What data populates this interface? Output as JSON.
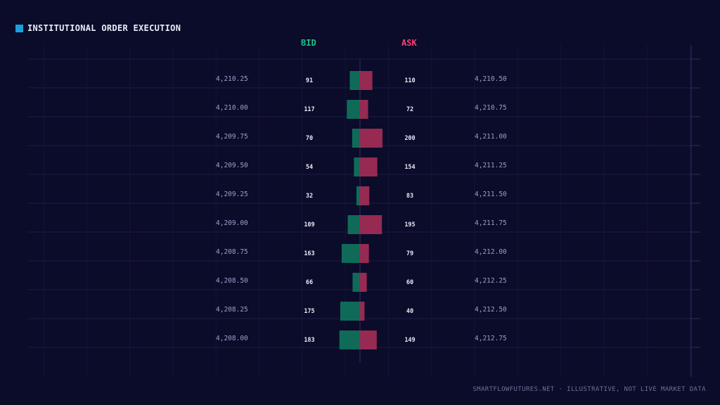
{
  "header": {
    "title": "INSTITUTIONAL ORDER EXECUTION",
    "accent_color": "#1aa0d8"
  },
  "columns": {
    "bid_label": "BID",
    "ask_label": "ASK",
    "bid_color": "#1fc28a",
    "ask_color": "#ff3f74"
  },
  "chart_data": {
    "type": "bar",
    "rows": [
      {
        "bid_price": "4,210.25",
        "bid_size": 91,
        "ask_size": 110,
        "ask_price": "4,210.50"
      },
      {
        "bid_price": "4,210.00",
        "bid_size": 117,
        "ask_size": 72,
        "ask_price": "4,210.75"
      },
      {
        "bid_price": "4,209.75",
        "bid_size": 70,
        "ask_size": 200,
        "ask_price": "4,211.00"
      },
      {
        "bid_price": "4,209.50",
        "bid_size": 54,
        "ask_size": 154,
        "ask_price": "4,211.25"
      },
      {
        "bid_price": "4,209.25",
        "bid_size": 32,
        "ask_size": 83,
        "ask_price": "4,211.50"
      },
      {
        "bid_price": "4,209.00",
        "bid_size": 109,
        "ask_size": 195,
        "ask_price": "4,211.75"
      },
      {
        "bid_price": "4,208.75",
        "bid_size": 163,
        "ask_size": 79,
        "ask_price": "4,212.00"
      },
      {
        "bid_price": "4,208.50",
        "bid_size": 66,
        "ask_size": 60,
        "ask_price": "4,212.25"
      },
      {
        "bid_price": "4,208.25",
        "bid_size": 175,
        "ask_size": 40,
        "ask_price": "4,212.50"
      },
      {
        "bid_price": "4,208.00",
        "bid_size": 183,
        "ask_size": 149,
        "ask_price": "4,212.75"
      }
    ],
    "max_size": 200,
    "grid": true,
    "bid_bar_color": "#0f6b58",
    "ask_bar_color": "#962a52"
  },
  "footer": {
    "credit": "SMARTFLOWFUTURES.NET · ILLUSTRATIVE, NOT LIVE MARKET DATA"
  }
}
